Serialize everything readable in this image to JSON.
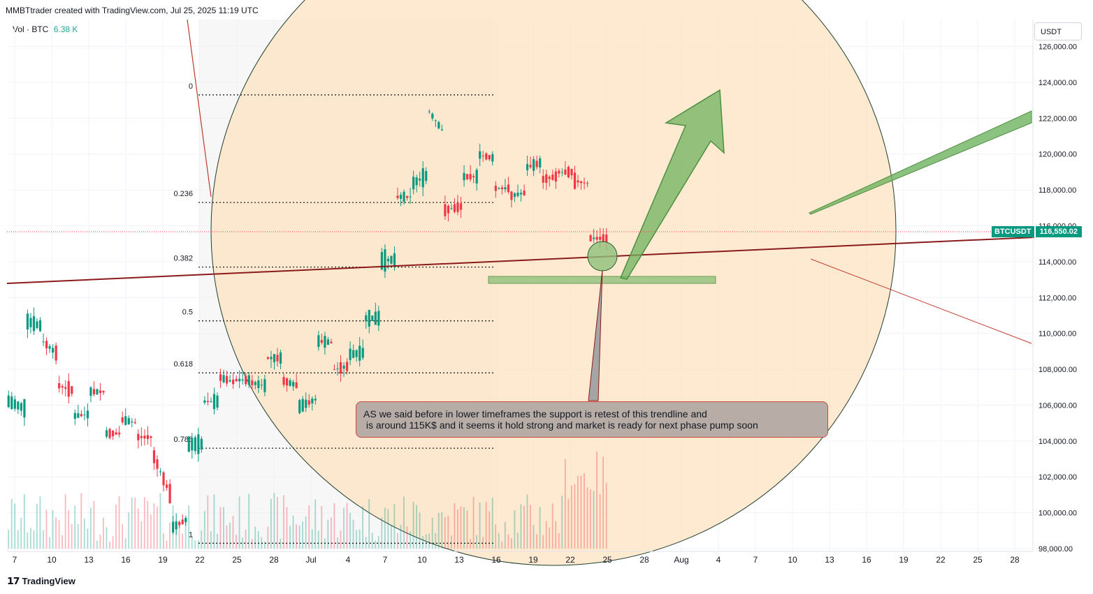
{
  "header": {
    "created_text": "MMBTtrader created with TradingView.com, Jul 25, 2025 11:19 UTC"
  },
  "volume": {
    "label": "Vol · BTC",
    "value": "6.38 K"
  },
  "currency": "USDT",
  "price_tag": {
    "symbol": "BTCUSDT",
    "price": "116,550.02"
  },
  "annotation": {
    "line1": "AS we said before in lower timeframes the support is retest of this trendline and",
    "line2": " is around 115K$ and it seems it hold strong and market is ready for next phase pump soon"
  },
  "footer": {
    "brand": "TradingView",
    "logo_glyph": "𝟭𝟳"
  },
  "colors": {
    "up": "#089981",
    "down": "#f23645",
    "circle_fill": "#fde3c2",
    "trendline": "#8b1a1a",
    "arrow": "#5fad56"
  },
  "chart_data": {
    "type": "candlestick",
    "ylim": [
      98000,
      127500
    ],
    "y_ticks": [
      "126,000.00",
      "124,000.00",
      "122,000.00",
      "120,000.00",
      "118,000.00",
      "116,000.00",
      "114,000.00",
      "112,000.00",
      "110,000.00",
      "108,000.00",
      "106,000.00",
      "104,000.00",
      "102,000.00",
      "100,000.00",
      "98,000.00"
    ],
    "x_ticks": [
      "7",
      "10",
      "13",
      "16",
      "19",
      "22",
      "25",
      "28",
      "Jul",
      "4",
      "7",
      "10",
      "13",
      "16",
      "19",
      "22",
      "25",
      "28",
      "Aug",
      "4",
      "7",
      "10",
      "13",
      "16",
      "19",
      "22",
      "25",
      "28"
    ],
    "fib_levels": [
      {
        "label": "0",
        "price": 123300
      },
      {
        "label": "0.236",
        "price": 117300
      },
      {
        "label": "0.382",
        "price": 113700
      },
      {
        "label": "0.5",
        "price": 110700
      },
      {
        "label": "0.618",
        "price": 107800
      },
      {
        "label": "0.786",
        "price": 103600
      },
      {
        "label": "1",
        "price": 98300
      }
    ],
    "last_price": 116550.02,
    "series": [
      {
        "x": "Jun 6",
        "values": [
          104200,
          105900
        ]
      },
      {
        "x": "Jun 9",
        "values": [
          105500,
          110500
        ]
      },
      {
        "x": "Jun 10",
        "values": [
          110200,
          109800
        ]
      },
      {
        "x": "Jun 12",
        "values": [
          109000,
          107300
        ]
      },
      {
        "x": "Jun 13",
        "values": [
          107000,
          105400
        ]
      },
      {
        "x": "Jun 16",
        "values": [
          105500,
          106800
        ]
      },
      {
        "x": "Jun 17",
        "values": [
          106800,
          104500
        ]
      },
      {
        "x": "Jun 18",
        "values": [
          104500,
          105200
        ]
      },
      {
        "x": "Jun 19",
        "values": [
          105000,
          104300
        ]
      },
      {
        "x": "Jun 20",
        "values": [
          104300,
          103400
        ]
      },
      {
        "x": "Jun 22",
        "values": [
          101300,
          99000
        ]
      },
      {
        "x": "Jun 23",
        "values": [
          99500,
          103500
        ]
      },
      {
        "x": "Jun 24",
        "values": [
          103500,
          106000
        ]
      },
      {
        "x": "Jun 25",
        "values": [
          106000,
          107500
        ]
      },
      {
        "x": "Jun 27",
        "values": [
          107200,
          107400
        ]
      },
      {
        "x": "Jul 1",
        "values": [
          107400,
          107200
        ]
      },
      {
        "x": "Jul 2",
        "values": [
          107000,
          108600
        ]
      },
      {
        "x": "Jul 3",
        "values": [
          108600,
          107500
        ]
      },
      {
        "x": "Jul 5",
        "values": [
          107200,
          105800
        ]
      },
      {
        "x": "Jul 7",
        "values": [
          106200,
          109500
        ]
      },
      {
        "x": "Jul 8",
        "values": [
          109400,
          108000
        ]
      },
      {
        "x": "Jul 9",
        "values": [
          108200,
          108700
        ]
      },
      {
        "x": "Jul 10",
        "values": [
          108800,
          110600
        ]
      },
      {
        "x": "Jul 11",
        "values": [
          110600,
          113700
        ]
      },
      {
        "x": "Jul 12",
        "values": [
          113800,
          117400
        ]
      },
      {
        "x": "Jul 13",
        "values": [
          117400,
          118100
        ]
      },
      {
        "x": "Jul 14",
        "values": [
          118600,
          122500
        ]
      },
      {
        "x": "Jul 15",
        "values": [
          121200,
          117000
        ]
      },
      {
        "x": "Jul 16",
        "values": [
          117200,
          118600
        ]
      },
      {
        "x": "Jul 17",
        "values": [
          118600,
          120000
        ]
      },
      {
        "x": "Jul 18",
        "values": [
          119800,
          118200
        ]
      },
      {
        "x": "Jul 19",
        "values": [
          118200,
          117600
        ]
      },
      {
        "x": "Jul 21",
        "values": [
          117800,
          119200
        ]
      },
      {
        "x": "Jul 22",
        "values": [
          119500,
          118600
        ]
      },
      {
        "x": "Jul 23",
        "values": [
          118800,
          119000
        ]
      },
      {
        "x": "Jul 24",
        "values": [
          119000,
          118700
        ]
      },
      {
        "x": "Jul 25",
        "values": [
          118500,
          115400
        ]
      },
      {
        "x": "Jul 25b",
        "values": [
          115400,
          116550
        ]
      }
    ]
  }
}
